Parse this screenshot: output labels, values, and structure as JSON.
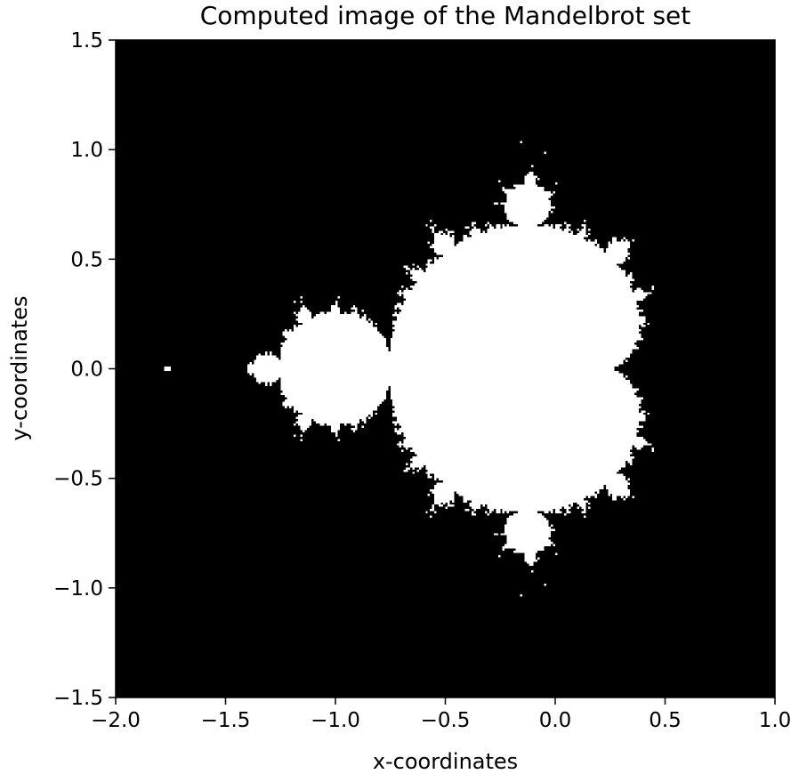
{
  "chart_data": {
    "type": "heatmap",
    "title": "Computed image of the Mandelbrot set",
    "xlabel": "x-coordinates",
    "ylabel": "y-coordinates",
    "xlim": [
      -2.0,
      1.0
    ],
    "ylim": [
      -1.5,
      1.5
    ],
    "x_ticks": [
      -2.0,
      -1.5,
      -1.0,
      -0.5,
      0.0,
      0.5,
      1.0
    ],
    "x_tick_labels": [
      "−2.0",
      "−1.5",
      "−1.0",
      "−0.5",
      "0.0",
      "0.5",
      "1.0"
    ],
    "y_ticks": [
      -1.5,
      -1.0,
      -0.5,
      0.0,
      0.5,
      1.0,
      1.5
    ],
    "y_tick_labels": [
      "−1.5",
      "−1.0",
      "−0.5",
      "0.0",
      "0.5",
      "1.0",
      "1.5"
    ],
    "grid": false,
    "colormap": "binary",
    "background_color": "#000000",
    "set_color": "#ffffff",
    "max_iterations": 40,
    "escape_radius": 2.0,
    "resolution": [
      300,
      300
    ]
  }
}
